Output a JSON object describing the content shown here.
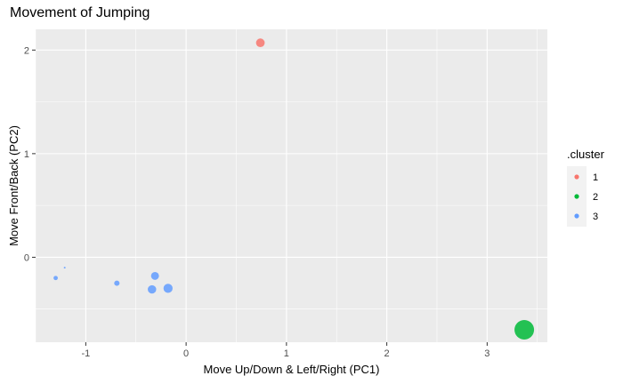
{
  "chart_data": {
    "type": "scatter",
    "title": "Movement of Jumping",
    "xlabel": "Move Up/Down & Left/Right (PC1)",
    "ylabel": "Move Front/Back (PC2)",
    "xlim": [
      -1.5,
      3.6
    ],
    "ylim": [
      -0.82,
      2.2
    ],
    "x_ticks": [
      -1,
      0,
      1,
      2,
      3
    ],
    "y_ticks": [
      0,
      1,
      2
    ],
    "grid": true,
    "legend": {
      "title": ".cluster",
      "placement": "right",
      "entries": [
        "1",
        "2",
        "3"
      ]
    },
    "series": [
      {
        "name": "1",
        "color": "#F8766D",
        "points": [
          {
            "x": 0.74,
            "y": 2.07,
            "size": 0.15
          }
        ]
      },
      {
        "name": "2",
        "color": "#00BA38",
        "points": [
          {
            "x": 3.37,
            "y": -0.7,
            "size": 1.0
          }
        ]
      },
      {
        "name": "3",
        "color": "#619CFF",
        "points": [
          {
            "x": -1.21,
            "y": -0.1,
            "size": 0.0
          },
          {
            "x": -1.3,
            "y": -0.2,
            "size": 0.02
          },
          {
            "x": -0.69,
            "y": -0.25,
            "size": 0.04
          },
          {
            "x": -0.31,
            "y": -0.18,
            "size": 0.12
          },
          {
            "x": -0.34,
            "y": -0.31,
            "size": 0.14
          },
          {
            "x": -0.18,
            "y": -0.3,
            "size": 0.17
          }
        ]
      }
    ]
  }
}
